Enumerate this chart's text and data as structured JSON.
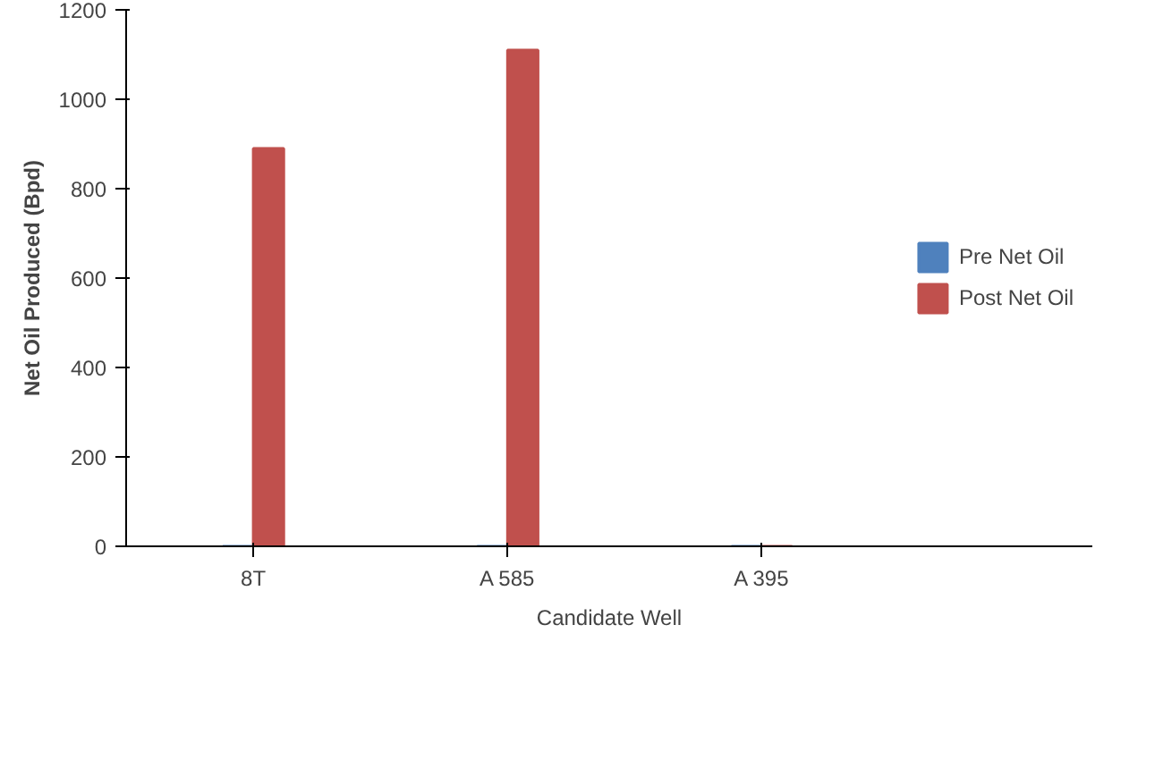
{
  "chart_data": {
    "type": "bar",
    "xlabel": "Candidate Well",
    "ylabel": "Net Oil Produced (Bpd)",
    "categories": [
      "8T",
      "A 585",
      "A 395"
    ],
    "series": [
      {
        "name": "Pre Net Oil",
        "color": "#4f81bd",
        "values": [
          0,
          0,
          0
        ]
      },
      {
        "name": "Post Net Oil",
        "color": "#c0504d",
        "values": [
          890,
          1110,
          0
        ]
      }
    ],
    "ylim": [
      0,
      1200
    ],
    "yticks": [
      0,
      200,
      400,
      600,
      800,
      1000,
      1200
    ],
    "grid": false,
    "legend": "right"
  }
}
